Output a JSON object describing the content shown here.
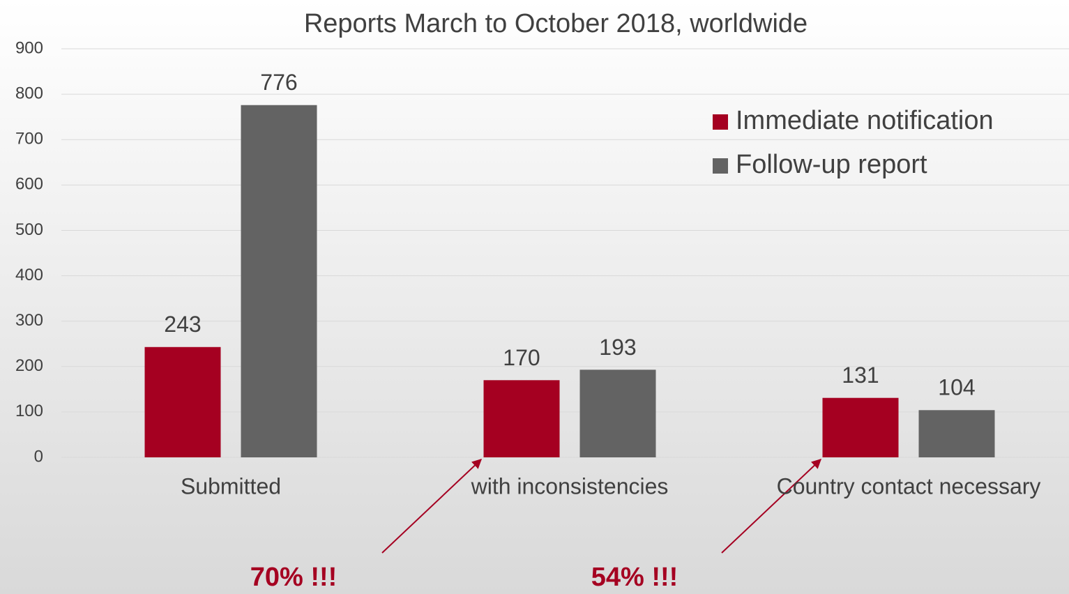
{
  "chart_data": {
    "type": "bar",
    "title": "Reports March to October 2018, worldwide",
    "categories": [
      "Submitted",
      "with inconsistencies",
      "Country contact necessary"
    ],
    "series": [
      {
        "name": "Immediate notification",
        "color": "#a50021",
        "values": [
          243,
          170,
          131
        ]
      },
      {
        "name": "Follow-up report",
        "color": "#636363",
        "values": [
          776,
          193,
          104
        ]
      }
    ],
    "ylim": [
      0,
      900
    ],
    "yticks": [
      0,
      100,
      200,
      300,
      400,
      500,
      600,
      700,
      800,
      900
    ],
    "grid": true,
    "legend": "upper right",
    "annotations": [
      "70% !!!",
      "54% !!!"
    ]
  }
}
